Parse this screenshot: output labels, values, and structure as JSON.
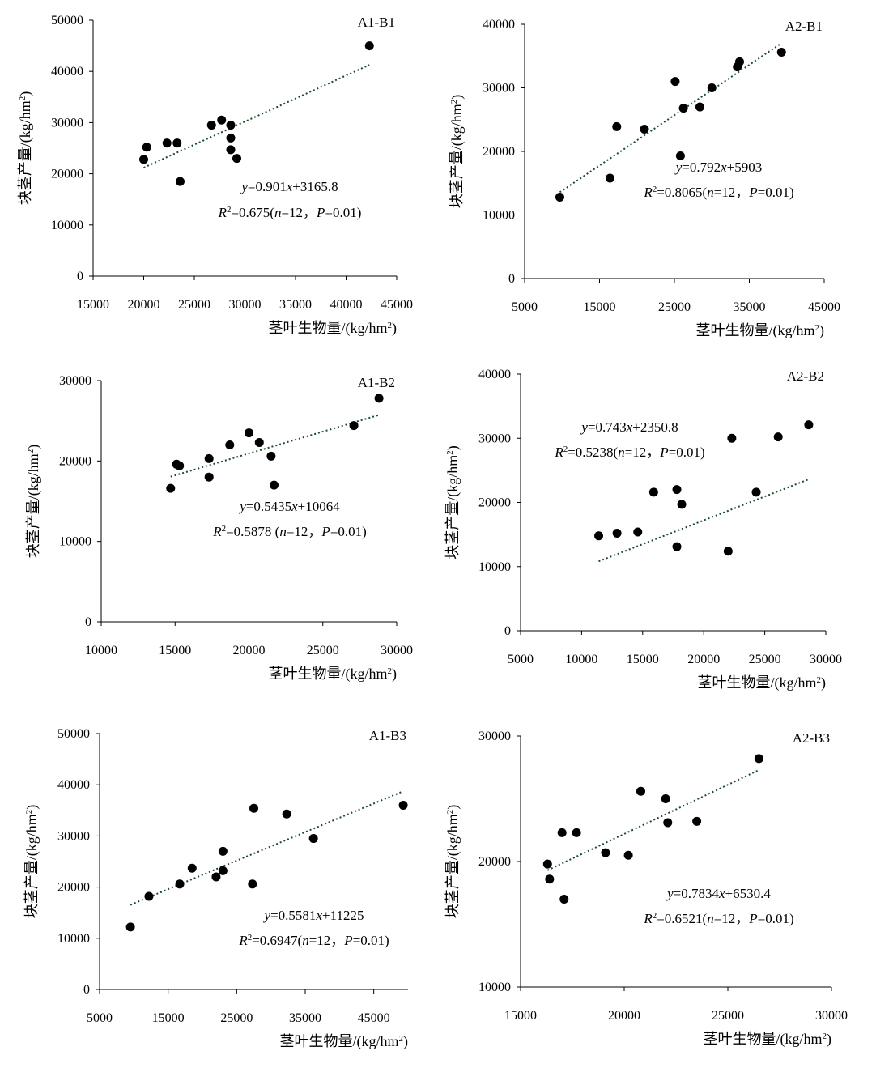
{
  "chart_data": [
    {
      "type": "scatter",
      "title": "A1-B1",
      "xlabel": "茎叶生物量/(kg/hm²)",
      "ylabel": "块茎产量/(kg/hm²)",
      "xlim": [
        15000,
        45000
      ],
      "ylim": [
        0,
        50000
      ],
      "xticks": [
        "15000",
        "20000",
        "25000",
        "30000",
        "35000",
        "40000",
        "45000"
      ],
      "yticks": [
        "0",
        "10000",
        "20000",
        "30000",
        "40000",
        "50000"
      ],
      "x": [
        20000,
        20300,
        22300,
        23300,
        23600,
        26700,
        27700,
        28600,
        28600,
        28600,
        29200,
        42300
      ],
      "y": [
        22800,
        25200,
        26000,
        26000,
        18500,
        29500,
        30500,
        29500,
        27000,
        24700,
        23000,
        45000
      ],
      "trendline": {
        "slope": 0.901,
        "intercept": 3165.8,
        "x_range": [
          20000,
          42300
        ]
      },
      "equation": "y=0.901x+3165.8",
      "r2_text": "R²=0.675(n=12，P=0.01)"
    },
    {
      "type": "scatter",
      "title": "A2-B1",
      "xlabel": "茎叶生物量/(kg/hm²)",
      "ylabel": "块茎产量/(kg/hm²)",
      "xlim": [
        5000,
        45000
      ],
      "ylim": [
        0,
        40000
      ],
      "xticks": [
        "5000",
        "15000",
        "25000",
        "35000",
        "45000"
      ],
      "yticks": [
        "0",
        "10000",
        "20000",
        "30000",
        "40000"
      ],
      "x": [
        9700,
        16400,
        17300,
        21000,
        25100,
        25800,
        26200,
        28400,
        30000,
        33400,
        33700,
        39300
      ],
      "y": [
        12800,
        15800,
        23900,
        23500,
        31000,
        19300,
        26800,
        27000,
        30000,
        33300,
        34100,
        35600
      ],
      "trendline": {
        "slope": 0.792,
        "intercept": 5903,
        "x_range": [
          9700,
          39300
        ]
      },
      "equation": "y=0.792x+5903",
      "r2_text": "R²=0.8065(n=12，P=0.01)"
    },
    {
      "type": "scatter",
      "title": "A1-B2",
      "xlabel": "茎叶生物量/(kg/hm²)",
      "ylabel": "块茎产量/(kg/hm²)",
      "xlim": [
        10000,
        30000
      ],
      "ylim": [
        0,
        30000
      ],
      "xticks": [
        "10000",
        "15000",
        "20000",
        "25000",
        "30000"
      ],
      "yticks": [
        "0",
        "10000",
        "20000",
        "30000"
      ],
      "x": [
        14700,
        15100,
        15300,
        17300,
        17300,
        18700,
        20000,
        20700,
        21500,
        21700,
        27100,
        28800
      ],
      "y": [
        16600,
        19600,
        19400,
        20300,
        18000,
        22000,
        23500,
        22300,
        20600,
        17000,
        24400,
        27800
      ],
      "trendline": {
        "slope": 0.5435,
        "intercept": 10064,
        "x_range": [
          14700,
          28800
        ]
      },
      "equation": "y=0.5435x+10064",
      "r2_text": "R²=0.5878 (n=12，P=0.01)"
    },
    {
      "type": "scatter",
      "title": "A2-B2",
      "xlabel": "茎叶生物量/(kg/hm²)",
      "ylabel": "块茎产量/(kg/hm²)",
      "xlim": [
        5000,
        30000
      ],
      "ylim": [
        0,
        40000
      ],
      "xticks": [
        "5000",
        "10000",
        "15000",
        "20000",
        "25000",
        "30000"
      ],
      "yticks": [
        "0",
        "10000",
        "20000",
        "30000",
        "40000"
      ],
      "x": [
        11400,
        12900,
        14600,
        15900,
        17800,
        17800,
        18200,
        22000,
        22300,
        24300,
        26100,
        28600
      ],
      "y": [
        14800,
        15200,
        15400,
        21600,
        22000,
        13100,
        19700,
        12400,
        30000,
        21600,
        30200,
        32100
      ],
      "trendline": {
        "slope": 0.743,
        "intercept": 2350.8,
        "x_range": [
          11400,
          28600
        ]
      },
      "equation": "y=0.743x+2350.8",
      "r2_text": "R²=0.5238(n=12，P=0.01)"
    },
    {
      "type": "scatter",
      "title": "A1-B3",
      "xlabel": "茎叶生物量/(kg/hm²)",
      "ylabel": "块茎产量/(kg/hm²)",
      "xlim": [
        5000,
        50000
      ],
      "ylim": [
        0,
        50000
      ],
      "xticks": [
        "5000",
        "15000",
        "25000",
        "35000",
        "45000"
      ],
      "yticks": [
        "0",
        "10000",
        "20000",
        "30000",
        "40000",
        "50000"
      ],
      "x": [
        9500,
        12200,
        16700,
        18500,
        22000,
        23000,
        23000,
        27300,
        27500,
        32300,
        36200,
        49300
      ],
      "y": [
        12200,
        18200,
        20600,
        23700,
        22000,
        23200,
        27000,
        20600,
        35400,
        34300,
        29500,
        36000
      ],
      "trendline": {
        "slope": 0.5581,
        "intercept": 11225,
        "x_range": [
          9500,
          49300
        ]
      },
      "equation": "y=0.5581x+11225",
      "r2_text": "R²=0.6947(n=12，P=0.01)"
    },
    {
      "type": "scatter",
      "title": "A2-B3",
      "xlabel": "茎叶生物量/(kg/hm²)",
      "ylabel": "块茎产量/(kg/hm²)",
      "xlim": [
        15000,
        30000
      ],
      "ylim": [
        10000,
        30000
      ],
      "xticks": [
        "15000",
        "20000",
        "25000",
        "30000"
      ],
      "yticks": [
        "10000",
        "20000",
        "30000"
      ],
      "x": [
        16300,
        16400,
        17000,
        17100,
        17700,
        19100,
        20200,
        20800,
        22000,
        22100,
        23500,
        26500
      ],
      "y": [
        19800,
        18600,
        22300,
        17000,
        22300,
        20700,
        20500,
        25600,
        25000,
        23100,
        23200,
        28200
      ],
      "trendline": {
        "slope": 0.7834,
        "intercept": 6530.4,
        "x_range": [
          16300,
          26500
        ]
      },
      "equation": "y=0.7834x+6530.4",
      "r2_text": "R²=0.6521(n=12，P=0.01)"
    }
  ]
}
